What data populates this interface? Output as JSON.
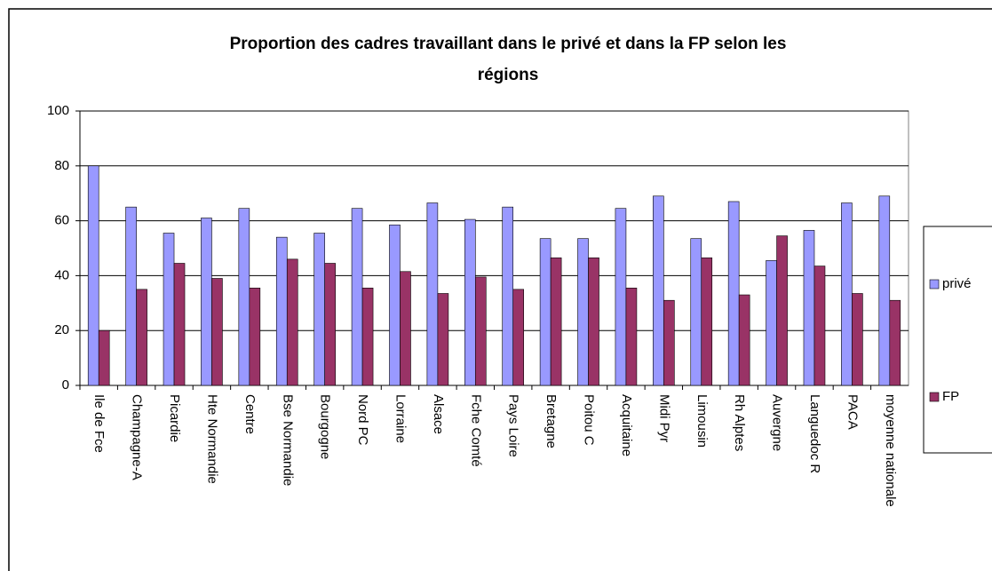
{
  "chart_data": {
    "type": "bar",
    "title": [
      "Proportion des cadres travaillant dans le privé et dans la FP selon les",
      "régions"
    ],
    "categories": [
      "Ile de Fce",
      "Champagne-A",
      "Picardie",
      "Hte Normandie",
      "Centre",
      "Bse Normandie",
      "Bourgogne",
      "Nord PC",
      "Lorraine",
      "Alsace",
      "Fche Comté",
      "Pays Loire",
      "Bretagne",
      "Poitou C",
      "Acquitaine",
      "Midi Pyr",
      "Limousin",
      "Rh Alptes",
      "Auvergne",
      "Languedoc R",
      "PACA",
      "moyenne nationale"
    ],
    "series": [
      {
        "name": "privé",
        "color": "#9999ff",
        "values": [
          80,
          65,
          55.5,
          61,
          64.5,
          54,
          55.5,
          64.5,
          58.5,
          66.5,
          60.5,
          65,
          53.5,
          53.5,
          64.5,
          69,
          53.5,
          67,
          45.5,
          56.5,
          66.5,
          69
        ]
      },
      {
        "name": "FP",
        "color": "#993366",
        "values": [
          20,
          35,
          44.5,
          39,
          35.5,
          46,
          44.5,
          35.5,
          41.5,
          33.5,
          39.5,
          35,
          46.5,
          46.5,
          35.5,
          31,
          46.5,
          33,
          54.5,
          43.5,
          33.5,
          31
        ]
      }
    ],
    "ylim": [
      0,
      100
    ],
    "yticks": [
      0,
      20,
      40,
      60,
      80,
      100
    ],
    "grid": true,
    "legend": "right"
  }
}
